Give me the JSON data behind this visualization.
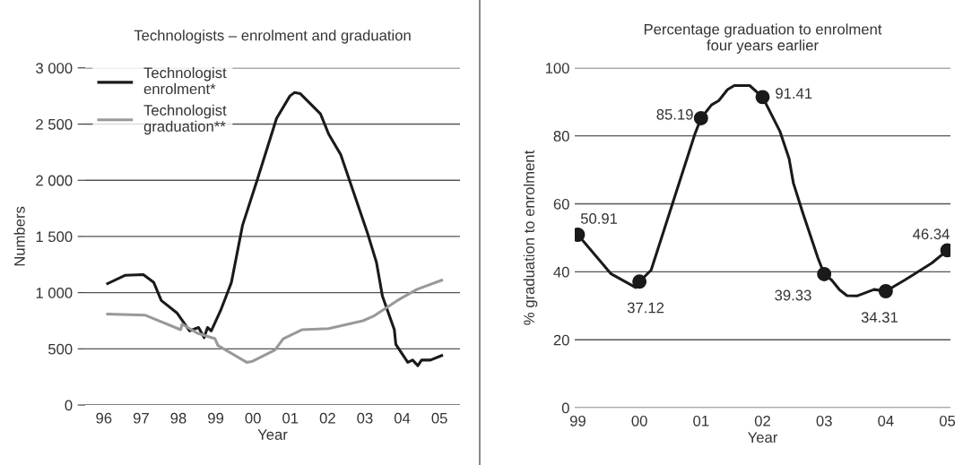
{
  "chart_data": [
    {
      "type": "line",
      "title": "Technologists – enrolment and graduation",
      "xlabel": "Year",
      "ylabel": "Numbers",
      "xlim": [
        1995.5,
        2005.55
      ],
      "ylim": [
        0,
        3000
      ],
      "xticks": [
        {
          "value": 1996,
          "label": "96"
        },
        {
          "value": 1997,
          "label": "97"
        },
        {
          "value": 1998,
          "label": "98"
        },
        {
          "value": 1999,
          "label": "99"
        },
        {
          "value": 2000,
          "label": "00"
        },
        {
          "value": 2001,
          "label": "01"
        },
        {
          "value": 2002,
          "label": "02"
        },
        {
          "value": 2003,
          "label": "03"
        },
        {
          "value": 2004,
          "label": "04"
        },
        {
          "value": 2005,
          "label": "05"
        }
      ],
      "yticks": [
        0,
        500,
        {
          "value": 1000,
          "label": "1 000"
        },
        {
          "value": 1500,
          "label": "1 500"
        },
        {
          "value": 2000,
          "label": "2 000"
        },
        {
          "value": 2500,
          "label": "2 500"
        },
        {
          "value": 3000,
          "label": "3 000"
        }
      ],
      "grid": "y",
      "legend": "top left",
      "marker": "none",
      "line_style": "solid",
      "series": [
        {
          "name": "Technologist enrolment*",
          "color": "#1a1a1a",
          "x": [
            1996.1,
            1996.58,
            1997.06,
            1997.34,
            1997.54,
            1997.96,
            1998.3,
            1998.54,
            1998.69,
            1998.78,
            1998.88,
            1999.13,
            1999.42,
            1999.72,
            2000.11,
            2000.63,
            2000.99,
            2001.11,
            2001.27,
            2001.81,
            2002.03,
            2002.35,
            2003.07,
            2003.31,
            2003.47,
            2003.79,
            2003.83,
            2004.15,
            2004.28,
            2004.42,
            2004.52,
            2004.76,
            2005.06
          ],
          "values": [
            1080,
            1155,
            1160,
            1090,
            930,
            820,
            660,
            690,
            600,
            690,
            660,
            840,
            1090,
            1600,
            2000,
            2550,
            2750,
            2780,
            2770,
            2590,
            2410,
            2230,
            1530,
            1270,
            970,
            670,
            540,
            380,
            400,
            350,
            400,
            400,
            440
          ]
        },
        {
          "name": "Technologist graduation**",
          "color": "#999999",
          "x": [
            1996.1,
            1997.1,
            1998.06,
            1998.1,
            1998.5,
            1998.98,
            1999.06,
            1999.83,
            1999.99,
            2000.59,
            2000.81,
            2001.31,
            2002.03,
            2002.95,
            2003.23,
            2003.87,
            2004.4,
            2005.06
          ],
          "values": [
            810,
            800,
            670,
            720,
            640,
            590,
            530,
            380,
            390,
            490,
            590,
            670,
            680,
            750,
            790,
            930,
            1030,
            1110
          ]
        }
      ]
    },
    {
      "type": "line",
      "title": "Percentage graduation to enrolment\nfour years earlier",
      "xlabel": "Year",
      "ylabel": "% graduation to enrolment",
      "xlim": [
        1998.95,
        2005.05
      ],
      "ylim": [
        0,
        100
      ],
      "xticks": [
        {
          "value": 1999,
          "label": "99"
        },
        {
          "value": 2000,
          "label": "00"
        },
        {
          "value": 2001,
          "label": "01"
        },
        {
          "value": 2002,
          "label": "02"
        },
        {
          "value": 2003,
          "label": "03"
        },
        {
          "value": 2004,
          "label": "04"
        },
        {
          "value": 2005,
          "label": "05"
        }
      ],
      "yticks": [
        0,
        20,
        40,
        60,
        80,
        100
      ],
      "grid": "y",
      "line_style": "solid",
      "series": [
        {
          "color": "#1a1a1a",
          "marker": "none",
          "x": [
            1999,
            1999.54,
            1999.94,
            2000,
            2000.19,
            2000.9,
            2001,
            2001.17,
            2001.29,
            2001.43,
            2001.54,
            2001.79,
            2002,
            2002.28,
            2002.43,
            2002.5,
            2002.65,
            2002.9,
            2003,
            2003.12,
            2003.25,
            2003.37,
            2003.53,
            2003.81,
            2004,
            2004.31,
            2004.75,
            2005
          ],
          "values": [
            50.91,
            39.4,
            35.4,
            37.12,
            40.5,
            80.5,
            85.19,
            89.1,
            90.4,
            93.6,
            94.8,
            94.8,
            91.41,
            81.4,
            73.3,
            66.1,
            57.5,
            44.0,
            39.33,
            37.6,
            34.7,
            33.0,
            32.9,
            34.8,
            34.31,
            37.6,
            42.6,
            46.34
          ]
        },
        {
          "type": "scatter",
          "color": "#1a1a1a",
          "marker": "circle",
          "data_labels": true,
          "x": [
            1999,
            2000,
            2001,
            2002,
            2003,
            2004,
            2005
          ],
          "values": [
            50.91,
            37.12,
            85.19,
            91.41,
            39.33,
            34.31,
            46.34
          ]
        }
      ]
    }
  ]
}
